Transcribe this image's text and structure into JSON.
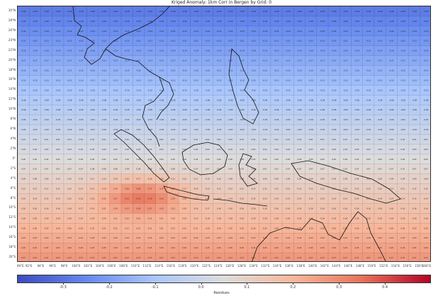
{
  "map": {
    "title": "Kriged Anomaly: 1km Corr in Bergen by Grid: 0",
    "lat_labels": [
      "30°N",
      "28°N",
      "26°N",
      "24°N",
      "22°N",
      "20°N",
      "18°N",
      "16°N",
      "14°N",
      "12°N",
      "10°N",
      "8°N",
      "6°N",
      "4°N",
      "2°N",
      "0°",
      "2°S",
      "4°S",
      "6°S",
      "8°S",
      "10°S",
      "12°S",
      "14°S",
      "16°S",
      "18°S",
      "20°S"
    ],
    "lon_labels": [
      "90°E",
      "92°E",
      "94°E",
      "96°E",
      "98°E",
      "100°E",
      "102°E",
      "104°E",
      "106°E",
      "108°E",
      "110°E",
      "112°E",
      "114°E",
      "116°E",
      "118°E",
      "120°E",
      "122°E",
      "124°E",
      "126°E",
      "128°E",
      "130°E",
      "132°E",
      "134°E",
      "136°E",
      "138°E",
      "140°E",
      "142°E",
      "144°E",
      "146°E",
      "148°E",
      "150°E",
      "152°E",
      "154°E",
      "156°E",
      "158°E",
      "160°E"
    ],
    "anomaly_peak": {
      "lon": 110.5,
      "lat": -7.5,
      "value": 0.45
    },
    "colormap": [
      "#3b4cc0",
      "#6688ee",
      "#aac7fd",
      "#dddcdc",
      "#f7b89c",
      "#e7745b",
      "#b40426"
    ]
  },
  "colorbar": {
    "range": [
      -0.4,
      0.5
    ],
    "ticks": [
      "-0.3",
      "-0.2",
      "-0.1",
      "0.0",
      "0.1",
      "0.2",
      "0.3",
      "0.4"
    ],
    "tick_values": [
      -0.3,
      -0.2,
      -0.1,
      0.0,
      0.1,
      0.2,
      0.3,
      0.4
    ],
    "label": "Residues"
  }
}
